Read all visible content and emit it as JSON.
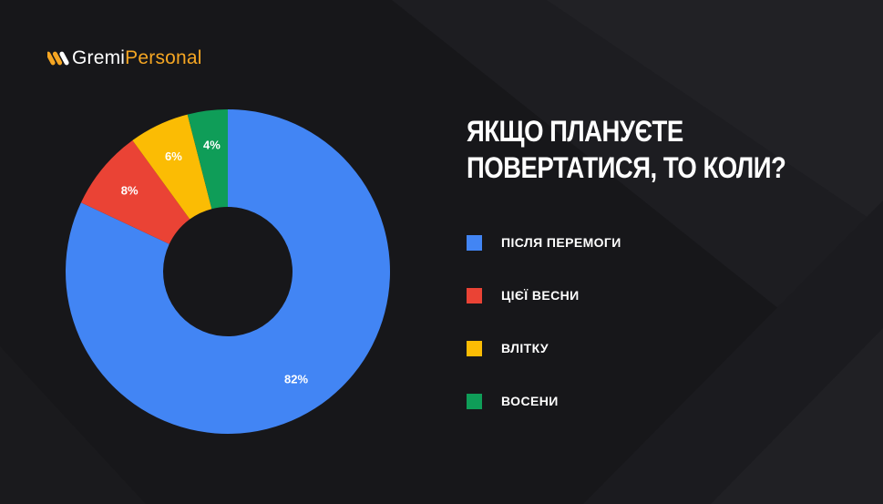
{
  "brand": {
    "logo_icon": "gremi-logo-icon",
    "name_part1": "Gremi",
    "name_part2": "Personal",
    "colors": {
      "primary": "#ffffff",
      "accent": "#f5a623"
    }
  },
  "chart_data": {
    "type": "pie",
    "title_lines": [
      "ЯКЩО ПЛАНУЄТЕ",
      "ПОВЕРТАТИСЯ, ТО КОЛИ?"
    ],
    "donut": true,
    "legend_position": "right",
    "slices": [
      {
        "label": "ПІСЛЯ ПЕРЕМОГИ",
        "value": 82,
        "value_label": "82%",
        "color": "#4285f4"
      },
      {
        "label": "ЦІЄЇ ВЕСНИ",
        "value": 8,
        "value_label": "8%",
        "color": "#ea4335"
      },
      {
        "label": "ВЛІТКУ",
        "value": 6,
        "value_label": "6%",
        "color": "#fbbc04"
      },
      {
        "label": "ВОСЕНИ",
        "value": 4,
        "value_label": "4%",
        "color": "#0f9d58"
      }
    ]
  },
  "background_color": "#17171a"
}
